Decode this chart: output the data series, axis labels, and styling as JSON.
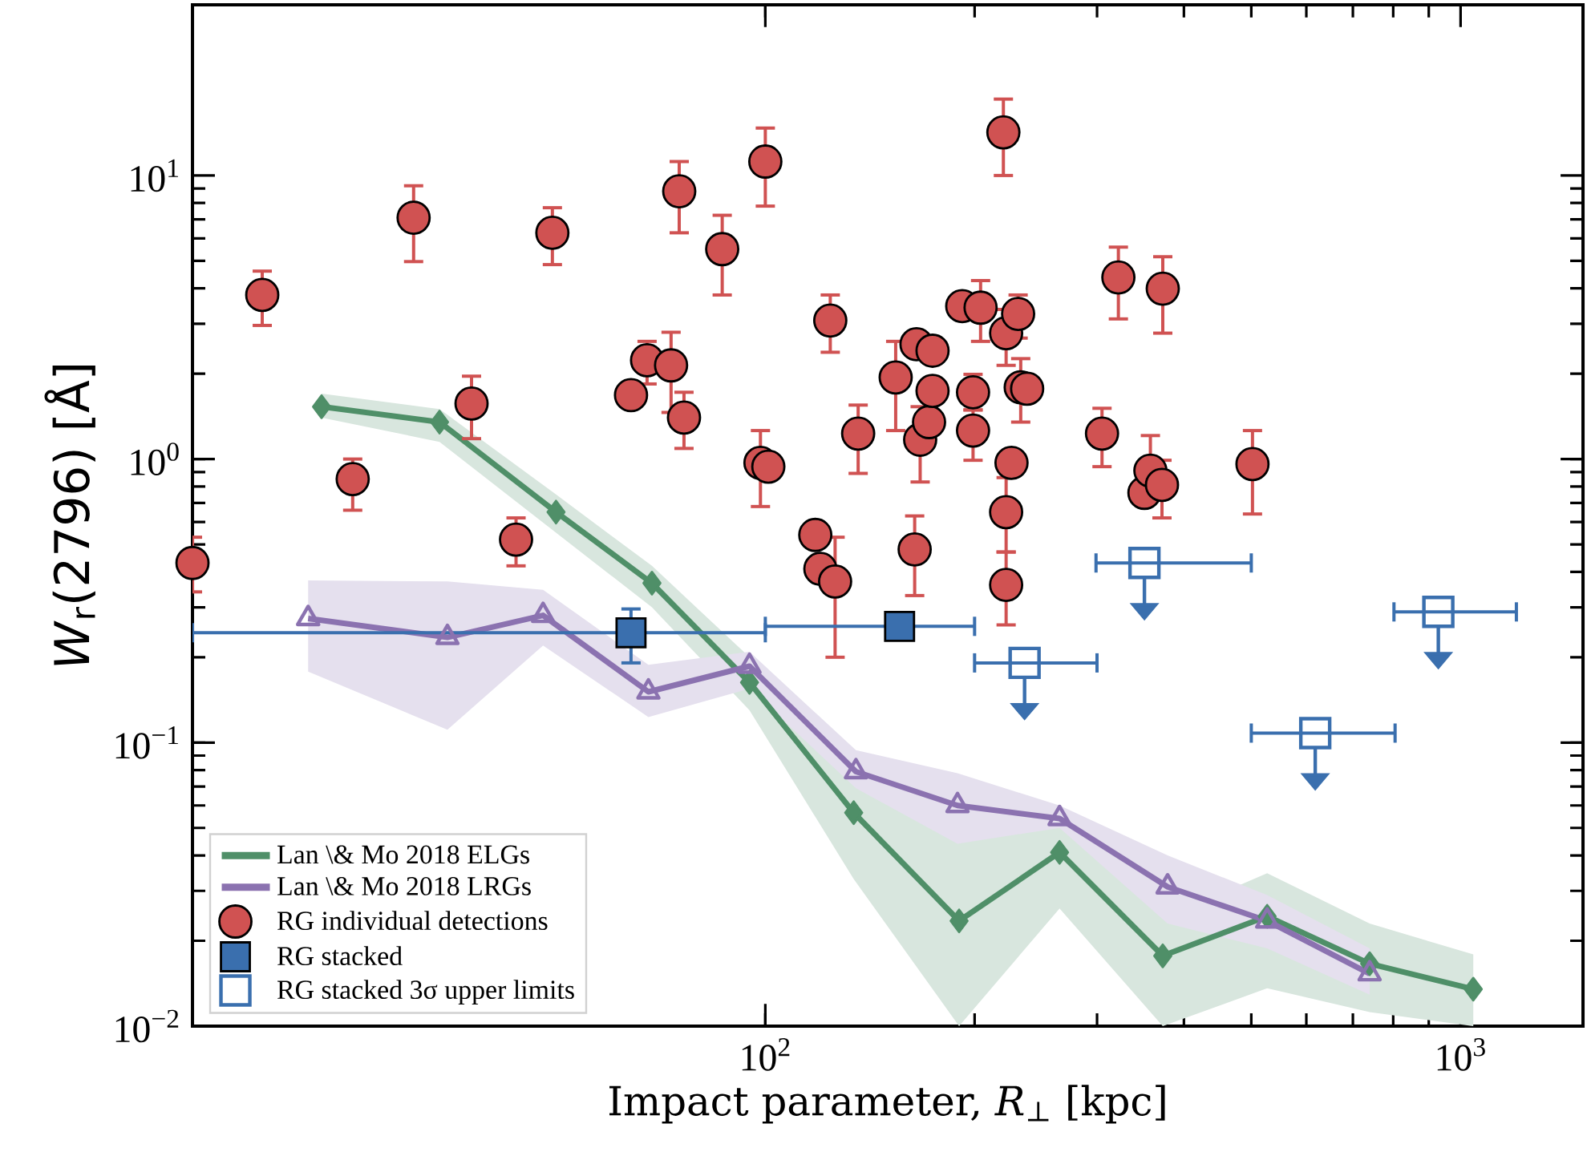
{
  "chart_data": {
    "type": "scatter",
    "log": "xy",
    "xlabel": "Impact parameter, *R*$_{⊥}$ [kpc]",
    "ylabel": "*W*$_{r}$(2796) [Å]",
    "xlim": [
      15,
      1500
    ],
    "ylim": [
      0.01,
      40
    ],
    "xticks": [
      {
        "value": 100,
        "label": "10$^{2}$"
      },
      {
        "value": 1000,
        "label": "10$^{3}$"
      }
    ],
    "yticks": [
      {
        "value": 0.01,
        "label": "10$^{−2}$"
      },
      {
        "value": 0.1,
        "label": "10$^{−1}$"
      },
      {
        "value": 1,
        "label": "10$^{0}$"
      },
      {
        "value": 10,
        "label": "10$^{1}$"
      }
    ],
    "grid": false,
    "legend": "bottom left",
    "series": [
      {
        "name": "Lan \\& Mo 2018 ELGs",
        "type": "line",
        "color": "#4f8f68",
        "marker": "diamond",
        "line_style": "solid",
        "x": [
          23.0,
          34.0,
          50.0,
          68.7,
          94.9,
          134,
          190,
          265,
          373,
          527,
          740,
          1043
        ],
        "values": [
          1.53,
          1.35,
          0.65,
          0.365,
          0.163,
          0.0566,
          0.0235,
          0.041,
          0.0177,
          0.0244,
          0.0166,
          0.0135
        ],
        "lower": [
          1.4,
          1.15,
          0.55,
          0.3,
          0.13,
          0.033,
          0.01,
          0.026,
          0.01,
          0.0136,
          0.0112,
          0.01
        ],
        "upper": [
          1.7,
          1.5,
          0.75,
          0.42,
          0.2,
          0.08,
          0.045,
          0.052,
          0.024,
          0.0346,
          0.023,
          0.0179
        ]
      },
      {
        "name": "Lan \\& Mo 2018 LRGs",
        "type": "line",
        "color": "#8b72b0",
        "marker": "triangle",
        "line_style": "solid",
        "x": [
          22.0,
          34.9,
          47.9,
          67.9,
          94.9,
          135,
          189,
          265,
          379,
          527,
          740
        ],
        "values": [
          0.274,
          0.235,
          0.281,
          0.151,
          0.186,
          0.079,
          0.06,
          0.054,
          0.031,
          0.0235,
          0.0153
        ],
        "lower": [
          0.178,
          0.111,
          0.22,
          0.123,
          0.155,
          0.069,
          0.044,
          0.05,
          0.023,
          0.0188,
          0.0129
        ],
        "upper": [
          0.373,
          0.37,
          0.346,
          0.188,
          0.209,
          0.094,
          0.078,
          0.06,
          0.04,
          0.029,
          0.0188
        ]
      },
      {
        "name": "RG individual detections",
        "color": "#d05252",
        "marker": "circle",
        "x": [
          15.0,
          18.9,
          25.5,
          31.2,
          37.8,
          43.8,
          49.4,
          64.1,
          67.6,
          73.2,
          75.2,
          76.4,
          86.7,
          98.4,
          100,
          101,
          118,
          120,
          124,
          126,
          136,
          154,
          164,
          165,
          167,
          172,
          174,
          174,
          192,
          199,
          199,
          204,
          220,
          222,
          222,
          222,
          226,
          231,
          233,
          238,
          305,
          322,
          351,
          358,
          372,
          373,
          502
        ],
        "values": [
          0.43,
          3.79,
          0.85,
          7.1,
          1.57,
          0.52,
          6.28,
          1.68,
          2.23,
          2.14,
          8.8,
          1.4,
          5.5,
          0.97,
          11.2,
          0.94,
          0.54,
          0.41,
          3.08,
          0.37,
          1.23,
          1.94,
          0.48,
          2.54,
          1.17,
          1.35,
          2.41,
          1.74,
          3.46,
          1.72,
          1.26,
          3.42,
          14.2,
          2.78,
          0.65,
          0.36,
          0.97,
          3.25,
          1.79,
          1.77,
          1.23,
          4.37,
          0.76,
          0.91,
          0.81,
          3.99,
          0.96
        ],
        "errors": [
          [
            0.34,
            0.53
          ],
          [
            2.96,
            4.6
          ],
          [
            0.66,
            1.0
          ],
          [
            4.97,
            9.2
          ],
          [
            1.18,
            1.96
          ],
          [
            0.42,
            0.62
          ],
          [
            4.85,
            7.7
          ],
          null,
          [
            1.84,
            2.6
          ],
          [
            1.46,
            2.8
          ],
          [
            6.28,
            11.2
          ],
          [
            1.09,
            1.72
          ],
          [
            3.79,
            7.24
          ],
          [
            0.68,
            1.26
          ],
          [
            7.8,
            14.7
          ],
          null,
          null,
          null,
          [
            2.38,
            3.79
          ],
          [
            0.2,
            0.53
          ],
          [
            0.89,
            1.55
          ],
          [
            1.26,
            2.6
          ],
          [
            0.33,
            0.63
          ],
          null,
          [
            0.83,
            1.53
          ],
          null,
          null,
          null,
          null,
          [
            1.49,
            1.99
          ],
          [
            0.99,
            1.49
          ],
          [
            2.6,
            4.26
          ],
          [
            10.0,
            18.6
          ],
          [
            2.14,
            3.37
          ],
          [
            0.47,
            0.86
          ],
          [
            0.26,
            0.47
          ],
          null,
          [
            2.67,
            3.79
          ],
          [
            1.35,
            2.26
          ],
          null,
          [
            0.94,
            1.51
          ],
          [
            3.12,
            5.59
          ],
          null,
          [
            0.75,
            1.21
          ],
          [
            0.62,
            0.99
          ],
          [
            2.78,
            5.17
          ],
          [
            0.64,
            1.26
          ]
        ]
      },
      {
        "name": "RG stacked",
        "color": "#3a6fae",
        "marker": "square",
        "x": [
          64.1,
          156
        ],
        "values": [
          0.244,
          0.257
        ],
        "errors": [
          [
            0.191,
            0.296
          ],
          null
        ],
        "xerrors": [
          [
            15,
            100
          ],
          [
            100,
            200
          ]
        ]
      },
      {
        "name": "RG stacked 3σ upper limits",
        "color": "#3a6fae",
        "marker": "square",
        "x": [
          236,
          351,
          618,
          929
        ],
        "values": [
          0.191,
          0.43,
          0.108,
          0.289
        ],
        "xerrors": [
          [
            200,
            300
          ],
          [
            299,
            500
          ],
          [
            500,
            805
          ],
          [
            802,
            1203
          ]
        ]
      }
    ]
  }
}
